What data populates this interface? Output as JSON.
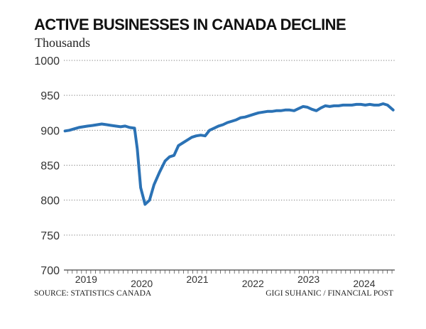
{
  "chart_data": {
    "type": "line",
    "title": "ACTIVE BUSINESSES IN CANADA DECLINE",
    "subtitle": "Thousands",
    "xlabel": "",
    "ylabel": "",
    "ylim": [
      700,
      1000
    ],
    "yticks": [
      700,
      750,
      800,
      850,
      900,
      950,
      1000
    ],
    "xlim": [
      2018.6,
      2024.55
    ],
    "year_labels": [
      {
        "label": "2019",
        "x": 2019.0
      },
      {
        "label": "2020",
        "x": 2020.0
      },
      {
        "label": "2021",
        "x": 2021.0
      },
      {
        "label": "2022",
        "x": 2022.0
      },
      {
        "label": "2023",
        "x": 2023.0
      },
      {
        "label": "2024",
        "x": 2024.0
      }
    ],
    "grid": true,
    "color": "#2b72b5",
    "series": [
      {
        "points": [
          [
            2018.62,
            899
          ],
          [
            2018.7,
            900
          ],
          [
            2018.78,
            902
          ],
          [
            2018.87,
            904
          ],
          [
            2018.95,
            905
          ],
          [
            2019.03,
            906
          ],
          [
            2019.12,
            907
          ],
          [
            2019.2,
            908
          ],
          [
            2019.28,
            909
          ],
          [
            2019.37,
            908
          ],
          [
            2019.45,
            907
          ],
          [
            2019.53,
            906
          ],
          [
            2019.62,
            905
          ],
          [
            2019.7,
            906
          ],
          [
            2019.78,
            904
          ],
          [
            2019.87,
            903
          ],
          [
            2019.92,
            873
          ],
          [
            2019.98,
            818
          ],
          [
            2020.06,
            794
          ],
          [
            2020.14,
            800
          ],
          [
            2020.22,
            822
          ],
          [
            2020.32,
            840
          ],
          [
            2020.42,
            856
          ],
          [
            2020.5,
            862
          ],
          [
            2020.58,
            864
          ],
          [
            2020.66,
            878
          ],
          [
            2020.74,
            882
          ],
          [
            2020.82,
            886
          ],
          [
            2020.9,
            890
          ],
          [
            2020.98,
            892
          ],
          [
            2021.06,
            893
          ],
          [
            2021.14,
            892
          ],
          [
            2021.22,
            900
          ],
          [
            2021.3,
            903
          ],
          [
            2021.38,
            906
          ],
          [
            2021.46,
            908
          ],
          [
            2021.54,
            911
          ],
          [
            2021.62,
            913
          ],
          [
            2021.7,
            915
          ],
          [
            2021.78,
            918
          ],
          [
            2021.86,
            919
          ],
          [
            2021.94,
            921
          ],
          [
            2022.02,
            923
          ],
          [
            2022.1,
            925
          ],
          [
            2022.18,
            926
          ],
          [
            2022.26,
            927
          ],
          [
            2022.34,
            927
          ],
          [
            2022.42,
            928
          ],
          [
            2022.5,
            928
          ],
          [
            2022.58,
            929
          ],
          [
            2022.66,
            929
          ],
          [
            2022.74,
            928
          ],
          [
            2022.82,
            931
          ],
          [
            2022.9,
            934
          ],
          [
            2022.98,
            933
          ],
          [
            2023.06,
            930
          ],
          [
            2023.14,
            928
          ],
          [
            2023.22,
            932
          ],
          [
            2023.3,
            935
          ],
          [
            2023.38,
            934
          ],
          [
            2023.46,
            935
          ],
          [
            2023.54,
            935
          ],
          [
            2023.62,
            936
          ],
          [
            2023.7,
            936
          ],
          [
            2023.78,
            936
          ],
          [
            2023.86,
            937
          ],
          [
            2023.94,
            937
          ],
          [
            2024.02,
            936
          ],
          [
            2024.1,
            937
          ],
          [
            2024.18,
            936
          ],
          [
            2024.26,
            936
          ],
          [
            2024.34,
            938
          ],
          [
            2024.42,
            936
          ],
          [
            2024.52,
            929
          ]
        ]
      }
    ]
  },
  "footer": {
    "source": "SOURCE: STATISTICS CANADA",
    "credit": "GIGI SUHANIC / FINANCIAL POST"
  }
}
